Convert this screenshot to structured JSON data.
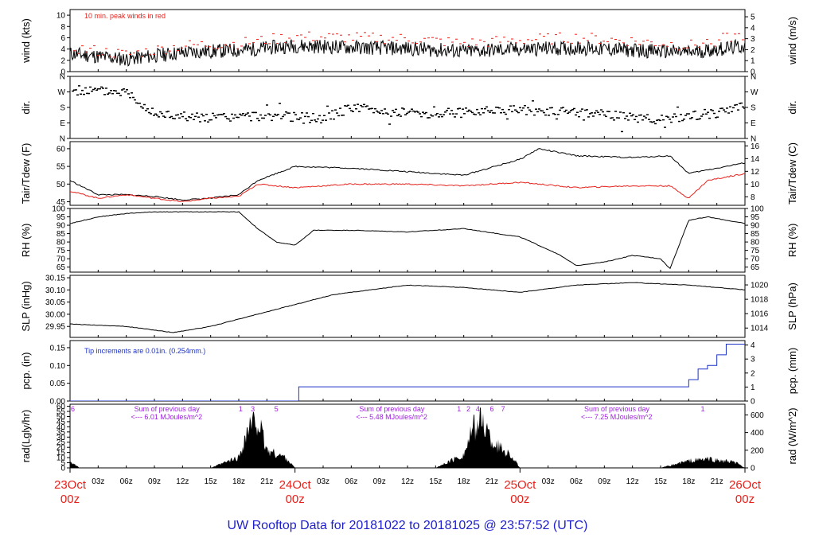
{
  "title": "UW Rooftop Data for 20181022  to  20181025 @ 23:57:52  (UTC)",
  "colors": {
    "title": "#1e1ecc",
    "peak": "#e8201a",
    "tair": "#000000",
    "tdew": "#e8201a",
    "pcp": "#1c32c8",
    "purple": "#a020e0",
    "day_label": "#e8201a"
  },
  "chart_data": [
    {
      "id": "wind",
      "type": "line",
      "ylabel_left": "wind (kts)",
      "ylabel_right": "wind (m/s)",
      "ylim": [
        0,
        11
      ],
      "yticks_left": [
        "0",
        "2",
        "4",
        "6",
        "8",
        "10"
      ],
      "yticks_right": [
        "0",
        "1",
        "2",
        "3",
        "4",
        "5"
      ],
      "annotation": "10 min. peak winds in red",
      "series": [
        {
          "color": "#000000",
          "x": [
            0,
            6,
            12,
            18,
            24,
            30,
            36,
            42,
            48,
            54,
            60,
            66,
            72
          ],
          "y": [
            3.2,
            2.2,
            3.4,
            3.8,
            4.6,
            4.3,
            4.1,
            3.6,
            4.0,
            4.2,
            3.8,
            3.4,
            4.5
          ]
        },
        {
          "color": "#e8201a",
          "x": [
            0,
            6,
            12,
            18,
            24,
            30,
            36,
            42,
            48,
            54,
            60,
            66,
            72
          ],
          "y": [
            4.2,
            3.0,
            4.6,
            5.0,
            6.2,
            6.0,
            5.8,
            5.0,
            5.6,
            6.0,
            5.4,
            4.6,
            6.6
          ]
        }
      ]
    },
    {
      "id": "dir",
      "type": "scatter",
      "ylabel_left": "dir.",
      "ylabel_right": "dir.",
      "yticks_left": [
        "N",
        "E",
        "S",
        "W",
        "N"
      ],
      "yticks_right": [
        "N",
        "E",
        "S",
        "W",
        "N"
      ],
      "ylim": [
        0,
        360
      ],
      "x": [
        0,
        3,
        6,
        9,
        12,
        15,
        18,
        21,
        24,
        27,
        30,
        33,
        36,
        39,
        42,
        45,
        48,
        51,
        54,
        57,
        60,
        63,
        66,
        69,
        72
      ],
      "y": [
        280,
        275,
        270,
        140,
        130,
        120,
        125,
        130,
        125,
        115,
        180,
        160,
        150,
        145,
        150,
        170,
        165,
        155,
        150,
        140,
        120,
        110,
        130,
        150,
        185
      ]
    },
    {
      "id": "temp",
      "type": "line",
      "ylabel_left": "Tair/Tdew (F)",
      "ylabel_right": "Tair/Tdew (C)",
      "ylim": [
        44,
        62
      ],
      "yticks_left": [
        "45",
        "50",
        "55",
        "60"
      ],
      "yticks_right": [
        "8",
        "10",
        "12",
        "14",
        "16"
      ],
      "series": [
        {
          "color": "#000000",
          "x": [
            0,
            3,
            6,
            9,
            12,
            15,
            18,
            20,
            24,
            30,
            36,
            42,
            48,
            50,
            54,
            60,
            64,
            66,
            68,
            72
          ],
          "y": [
            51,
            47,
            47,
            46.5,
            45.5,
            46,
            47,
            51,
            55,
            54.5,
            53.5,
            52.5,
            57,
            60,
            58,
            57.5,
            58,
            53,
            54,
            56
          ]
        },
        {
          "color": "#e8201a",
          "x": [
            0,
            3,
            6,
            9,
            12,
            15,
            18,
            20,
            24,
            30,
            36,
            42,
            48,
            54,
            60,
            64,
            66,
            68,
            72
          ],
          "y": [
            48,
            46,
            47,
            46,
            45,
            46,
            46.5,
            50,
            49,
            50,
            50,
            49.5,
            50.5,
            49,
            49.5,
            49.5,
            46,
            51,
            53
          ]
        }
      ]
    },
    {
      "id": "rh",
      "type": "line",
      "ylabel_left": "RH (%)",
      "ylabel_right": "RH (%)",
      "ylim": [
        62,
        100
      ],
      "yticks_left": [
        "65",
        "70",
        "75",
        "80",
        "85",
        "90",
        "95",
        "100"
      ],
      "yticks_right": [
        "65",
        "70",
        "75",
        "80",
        "85",
        "90",
        "95",
        "100"
      ],
      "series": [
        {
          "color": "#000000",
          "x": [
            0,
            3,
            6,
            9,
            12,
            15,
            18,
            20,
            22,
            24,
            26,
            30,
            36,
            42,
            48,
            52,
            54,
            57,
            60,
            63,
            64,
            66,
            68,
            72
          ],
          "y": [
            91,
            95,
            97,
            98,
            98,
            98,
            98,
            88,
            80,
            78,
            87,
            87,
            86,
            88,
            83,
            73,
            66,
            68,
            72,
            70,
            64,
            93,
            95,
            91
          ]
        }
      ]
    },
    {
      "id": "slp",
      "type": "line",
      "ylabel_left": "SLP (inHg)",
      "ylabel_right": "SLP (hPa)",
      "ylim": [
        29.905,
        30.16
      ],
      "yticks_left": [
        "29.95",
        "30.00",
        "30.05",
        "30.10",
        "30.15"
      ],
      "yticks_right": [
        "1014",
        "1016",
        "1018",
        "1020"
      ],
      "series": [
        {
          "color": "#000000",
          "x": [
            0,
            6,
            11,
            15,
            18,
            21,
            24,
            28,
            32,
            36,
            42,
            48,
            54,
            60,
            66,
            72
          ],
          "y": [
            29.96,
            29.95,
            29.925,
            29.95,
            29.98,
            30.01,
            30.04,
            30.08,
            30.1,
            30.12,
            30.11,
            30.09,
            30.12,
            30.13,
            30.12,
            30.1
          ]
        }
      ]
    },
    {
      "id": "pcp",
      "type": "line",
      "ylabel_left": "pcp. (in)",
      "ylabel_right": "pcp. (mm)",
      "ylim": [
        0,
        0.17
      ],
      "yticks_left": [
        "0.00",
        "0.05",
        "0.10",
        "0.15"
      ],
      "yticks_right": [
        "0",
        "1",
        "2",
        "3",
        "4"
      ],
      "annotation": "Tip increments are 0.01in. (0.254mm.)",
      "series": [
        {
          "color": "#1c32c8",
          "x": [
            0,
            24,
            24.4,
            65,
            66,
            67,
            68,
            69,
            70,
            72
          ],
          "y": [
            0,
            0,
            0.04,
            0.04,
            0.06,
            0.09,
            0.1,
            0.13,
            0.16,
            0.16
          ]
        }
      ]
    },
    {
      "id": "rad",
      "type": "area",
      "ylabel_left": "rad(Lgly/hr)",
      "ylabel_right": "rad (W/m^2)",
      "ylim": [
        0,
        62
      ],
      "yticks_left": [
        "0",
        "5",
        "10",
        "15",
        "20",
        "25",
        "30",
        "35",
        "40",
        "45",
        "50",
        "55",
        "60"
      ],
      "yticks_right": [
        "0",
        "200",
        "400",
        "600"
      ],
      "x": [
        0,
        1,
        15,
        18,
        19,
        20,
        21,
        23,
        24,
        39,
        42,
        43,
        44,
        45,
        47,
        48,
        63,
        66,
        68,
        71,
        72
      ],
      "y": [
        8,
        0,
        0,
        12,
        45,
        55,
        20,
        12,
        0,
        0,
        15,
        45,
        55,
        30,
        15,
        0,
        0,
        8,
        10,
        6,
        0
      ],
      "day_sums": [
        {
          "text": "Sum of previous day",
          "value": "<--- 6.01 MJoules/m^2",
          "at": 6
        },
        {
          "text": "Sum of previous day",
          "value": "<--- 5.48 MJoules/m^2",
          "at": 30
        },
        {
          "text": "Sum of previous day",
          "value": "<--- 7.25 MJoules/m^2",
          "at": 54
        }
      ],
      "markers": [
        {
          "label": "6",
          "at": 0.3
        },
        {
          "label": "1",
          "at": 18.2
        },
        {
          "label": "3",
          "at": 19.5
        },
        {
          "label": "5",
          "at": 22.0
        },
        {
          "label": "1",
          "at": 41.5
        },
        {
          "label": "2",
          "at": 42.5
        },
        {
          "label": "4",
          "at": 43.5
        },
        {
          "label": "6",
          "at": 45.0
        },
        {
          "label": "7",
          "at": 46.2
        },
        {
          "label": "1",
          "at": 67.5
        }
      ]
    }
  ],
  "x_axis": {
    "range": [
      0,
      72
    ],
    "hour_ticks": [
      {
        "label": "03z",
        "at": 3
      },
      {
        "label": "06z",
        "at": 6
      },
      {
        "label": "09z",
        "at": 9
      },
      {
        "label": "12z",
        "at": 12
      },
      {
        "label": "15z",
        "at": 15
      },
      {
        "label": "18z",
        "at": 18
      },
      {
        "label": "21z",
        "at": 21
      },
      {
        "label": "03z",
        "at": 27
      },
      {
        "label": "06z",
        "at": 30
      },
      {
        "label": "09z",
        "at": 33
      },
      {
        "label": "12z",
        "at": 36
      },
      {
        "label": "15z",
        "at": 39
      },
      {
        "label": "18z",
        "at": 42
      },
      {
        "label": "21z",
        "at": 45
      },
      {
        "label": "03z",
        "at": 51
      },
      {
        "label": "06z",
        "at": 54
      },
      {
        "label": "09z",
        "at": 57
      },
      {
        "label": "12z",
        "at": 60
      },
      {
        "label": "15z",
        "at": 63
      },
      {
        "label": "18z",
        "at": 66
      },
      {
        "label": "21z",
        "at": 69
      }
    ],
    "day_labels": [
      {
        "date": "23Oct",
        "hour": "00z",
        "at": 0
      },
      {
        "date": "24Oct",
        "hour": "00z",
        "at": 24
      },
      {
        "date": "25Oct",
        "hour": "00z",
        "at": 48
      },
      {
        "date": "26Oct",
        "hour": "00z",
        "at": 72
      }
    ]
  }
}
